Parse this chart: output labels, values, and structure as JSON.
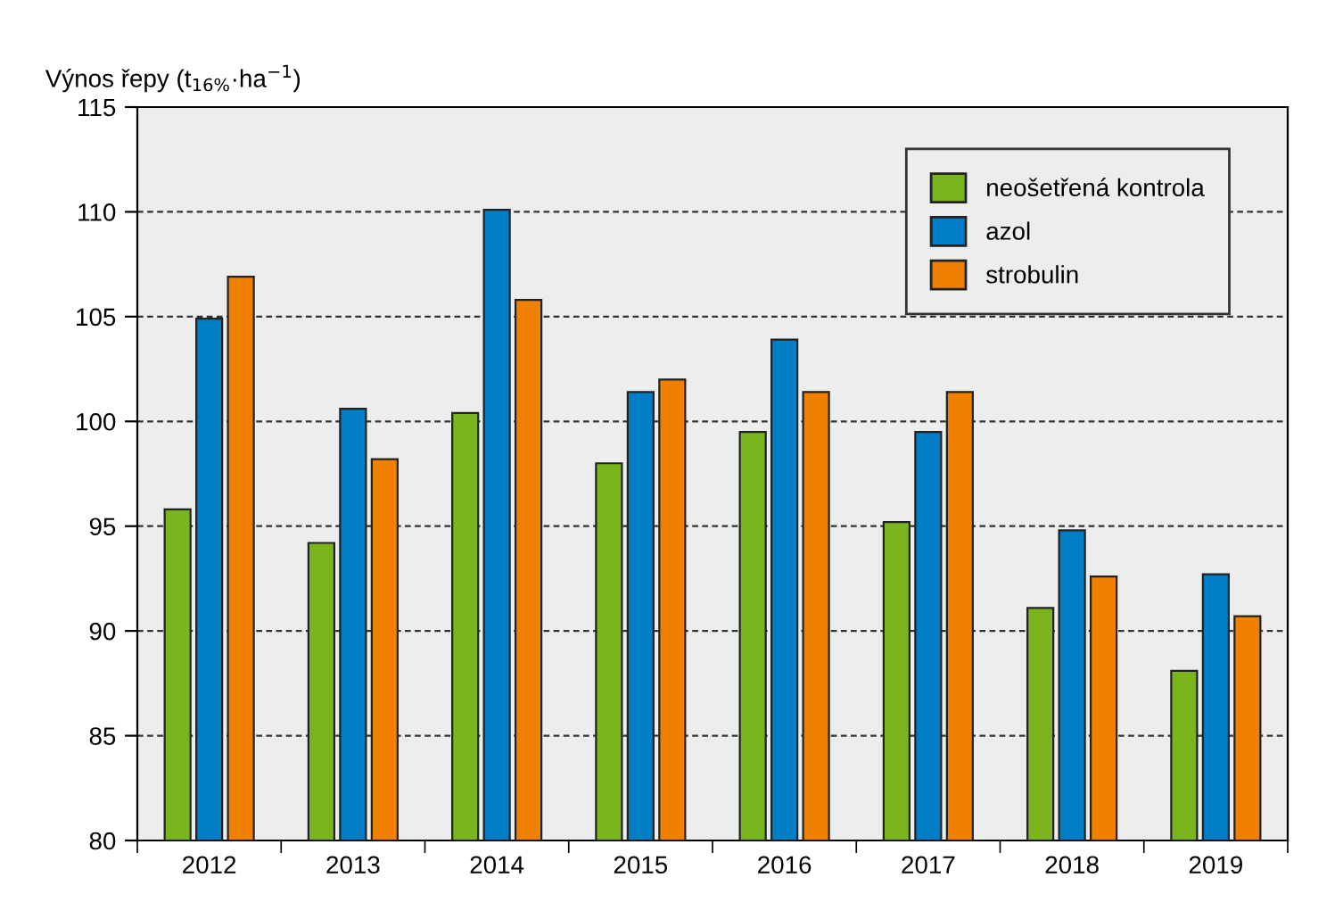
{
  "chart_data": {
    "type": "bar",
    "ylabel": "Výnos řepy (t$_{16%}$·ha$^{−1}$)",
    "categories": [
      "2012",
      "2013",
      "2014",
      "2015",
      "2016",
      "2017",
      "2018",
      "2019"
    ],
    "series": [
      {
        "name": "neošetřená kontrola",
        "color": "#7ab51d",
        "values": [
          95.8,
          94.2,
          100.4,
          98.0,
          99.5,
          95.2,
          91.1,
          88.1
        ]
      },
      {
        "name": "azol",
        "color": "#007dc5",
        "values": [
          104.9,
          100.6,
          110.1,
          101.4,
          103.9,
          99.5,
          94.8,
          92.7
        ]
      },
      {
        "name": "strobulin",
        "color": "#f08000",
        "values": [
          106.9,
          98.2,
          105.8,
          102.0,
          101.4,
          101.4,
          92.6,
          90.7
        ]
      }
    ],
    "ylim": [
      80,
      115
    ],
    "yticks": [
      80,
      85,
      90,
      95,
      100,
      105,
      110,
      115
    ],
    "grid": "y",
    "legend": "top right"
  }
}
